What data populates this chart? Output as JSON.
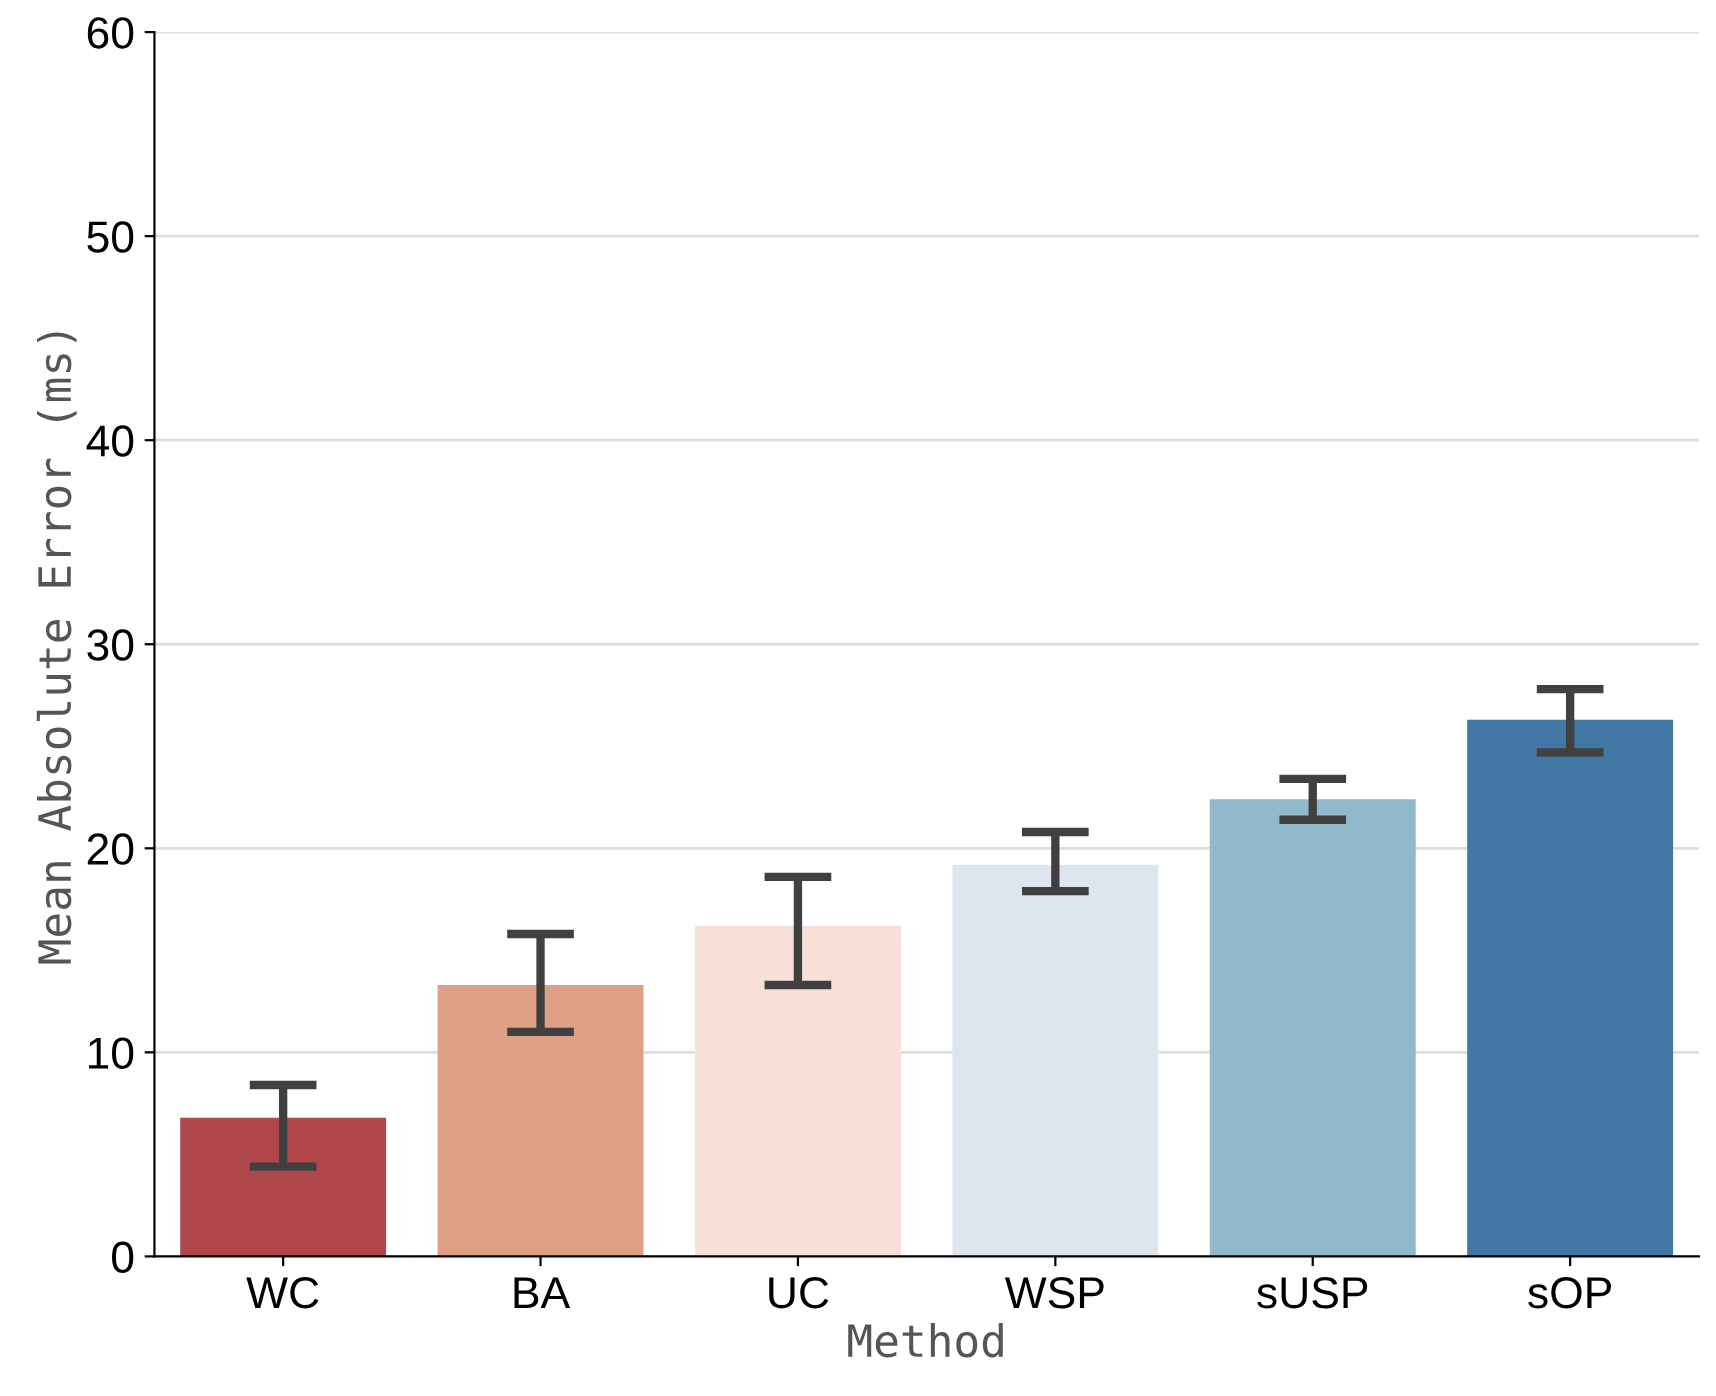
{
  "chart_data": {
    "type": "bar",
    "xlabel": "Method",
    "ylabel": "Mean Absolute Error (ms)",
    "categories": [
      "WC",
      "BA",
      "UC",
      "WSP",
      "sUSP",
      "sOP"
    ],
    "values": [
      6.8,
      13.3,
      16.2,
      19.2,
      22.4,
      26.3
    ],
    "colors": [
      "#b0474b",
      "#e0a085",
      "#f6e0d8",
      "#dde6ee",
      "#91b9cd",
      "#4276a3"
    ],
    "errors": [
      [
        4.4,
        8.4
      ],
      [
        11.0,
        15.8
      ],
      [
        13.3,
        18.6
      ],
      [
        17.9,
        20.8
      ],
      [
        21.4,
        23.4
      ],
      [
        24.7,
        27.8
      ]
    ],
    "ylim": [
      0,
      60
    ],
    "yticks": [
      0,
      10,
      20,
      30,
      40,
      50,
      60
    ],
    "grid": "y"
  }
}
